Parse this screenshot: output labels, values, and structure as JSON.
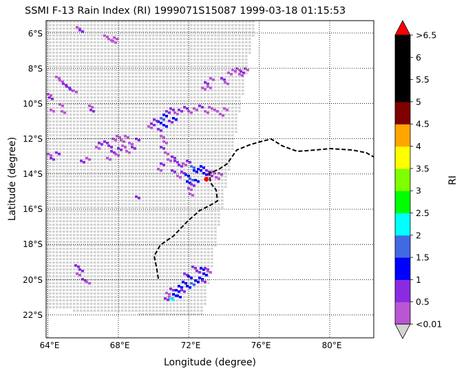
{
  "title": "SSMI F-13 Rain Index (RI) 1999071S15087 1999-03-18 01:15:53",
  "xlabel": "Longitude (degree)",
  "ylabel": "Latitude (degree)",
  "colorbar_label": "RI",
  "lon_ticks": [
    "64°E",
    "68°E",
    "72°E",
    "76°E",
    "80°E"
  ],
  "lat_ticks": [
    "6°S",
    "8°S",
    "10°S",
    "12°S",
    "14°S",
    "16°S",
    "18°S",
    "20°S",
    "22°S"
  ],
  "colorbar_ticks": [
    "<0.01",
    "0.5",
    "1",
    "1.5",
    "2",
    "2.5",
    "3",
    "3.5",
    "4",
    "4.5",
    "5",
    "5.5",
    "6",
    ">6.5"
  ],
  "colorbar_colors": [
    "#ba55d3",
    "#8a2be2",
    "#0000ff",
    "#4169e1",
    "#00ffff",
    "#00ff00",
    "#7fff00",
    "#ffff00",
    "#ffa500",
    "#800000",
    "#000000",
    "#000000",
    "#000000"
  ],
  "colorbar_under": "#d3d3d3",
  "colorbar_over": "#ff0000",
  "swath_color": "#d3d3d3",
  "storm_center": {
    "lon": 73.0,
    "lat": -14.3,
    "color": "#ff0000"
  },
  "extent": {
    "lon": [
      63.9,
      82.5
    ],
    "lat": [
      -23.3,
      -5.3
    ]
  }
}
